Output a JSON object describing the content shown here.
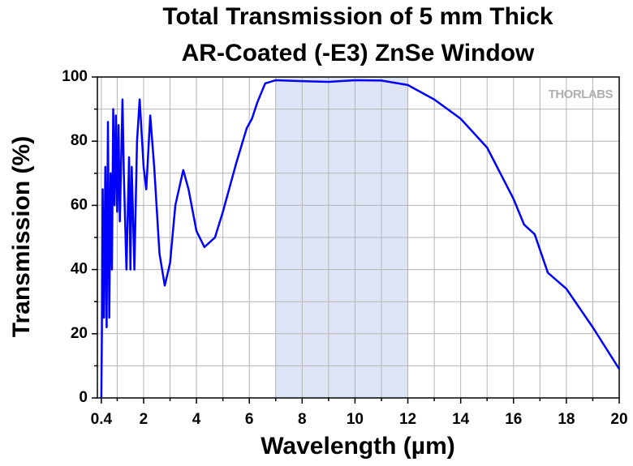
{
  "chart_data": {
    "type": "line",
    "title": [
      "Total Transmission of 5 mm Thick",
      "AR-Coated (-E3) ZnSe Window"
    ],
    "x_label": "Wavelength (µm)",
    "y_label": "Transmission (%)",
    "watermark": "THORLABS",
    "color": "#0000ff",
    "shaded_region": [
      7,
      12
    ],
    "shaded_color": "#dce4f5",
    "xlim": [
      0.25,
      20
    ],
    "ylim": [
      0,
      100
    ],
    "xticks": [
      0.4,
      2,
      4,
      6,
      8,
      10,
      12,
      14,
      16,
      18,
      20
    ],
    "x_minor_ticks": [
      1,
      3,
      5,
      7,
      9,
      11,
      13,
      15,
      17,
      19
    ],
    "yticks": [
      0,
      20,
      40,
      60,
      80,
      100
    ],
    "y_minor_ticks": [
      10,
      30,
      50,
      70,
      90
    ],
    "grid": true,
    "x": [
      0.4,
      0.42,
      0.45,
      0.5,
      0.55,
      0.6,
      0.65,
      0.7,
      0.75,
      0.8,
      0.85,
      0.9,
      0.95,
      1.0,
      1.05,
      1.1,
      1.2,
      1.25,
      1.35,
      1.45,
      1.5,
      1.55,
      1.65,
      1.75,
      1.85,
      2.0,
      2.1,
      2.25,
      2.4,
      2.6,
      2.8,
      3.0,
      3.2,
      3.5,
      3.7,
      4.0,
      4.3,
      4.7,
      5.0,
      5.5,
      5.9,
      6.1,
      6.3,
      6.6,
      7.0,
      8.0,
      9.0,
      10.0,
      11.0,
      12.0,
      13.0,
      14.0,
      15.0,
      16.0,
      16.4,
      16.8,
      17.3,
      18.0,
      19.0,
      20.0
    ],
    "values": [
      0,
      20,
      65,
      25,
      72,
      22,
      86,
      25,
      70,
      40,
      90,
      60,
      88,
      58,
      85,
      55,
      93,
      70,
      40,
      75,
      40,
      72,
      40,
      80,
      93,
      72,
      65,
      88,
      72,
      45,
      35,
      42,
      60,
      71,
      65,
      52,
      47,
      50,
      58,
      73,
      84,
      87,
      92,
      98,
      99,
      98.7,
      98.5,
      99,
      98.9,
      97.5,
      93,
      87,
      78,
      62,
      54,
      51,
      39,
      34,
      22,
      9
    ]
  }
}
